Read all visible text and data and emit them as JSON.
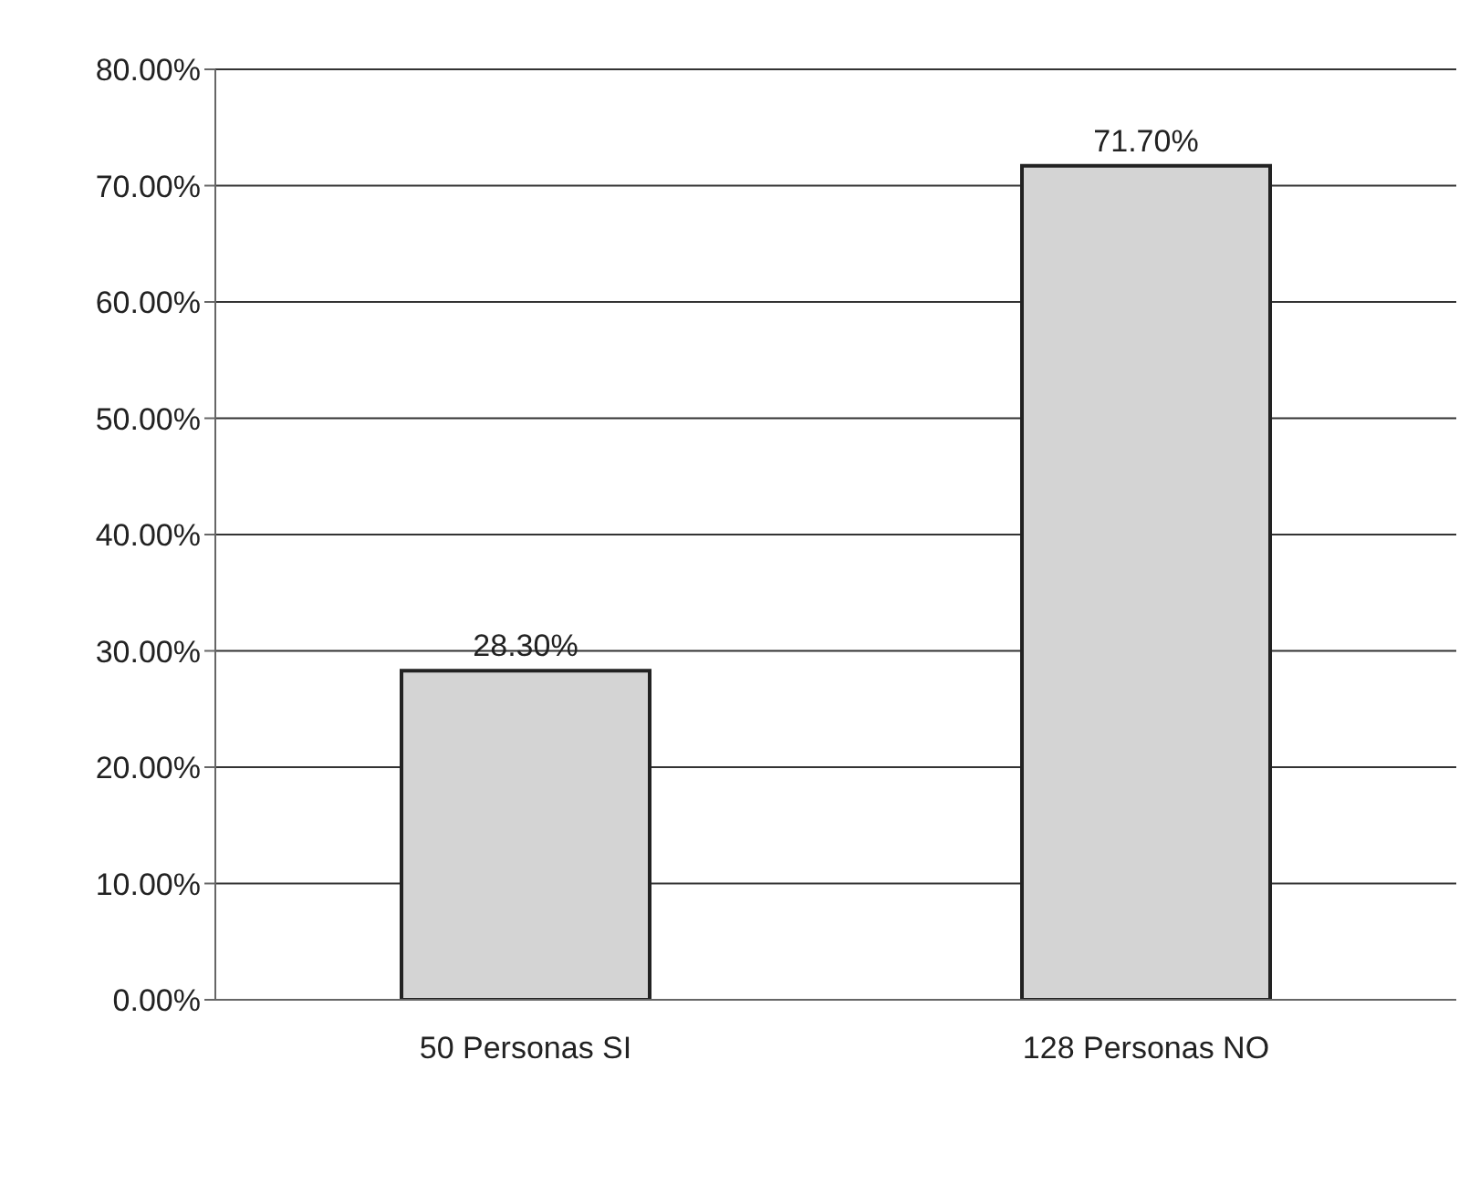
{
  "chart_data": {
    "type": "bar",
    "categories": [
      "50 Personas SI",
      "128 Personas NO"
    ],
    "values": [
      28.3,
      71.7
    ],
    "color": "#d4d4d4",
    "value_labels": [
      "28.30%",
      "71.70%"
    ],
    "ylim": [
      0,
      80
    ],
    "yticks": [
      {
        "value": 0,
        "label": "0.00%"
      },
      {
        "value": 10,
        "label": "10.00%"
      },
      {
        "value": 20,
        "label": "20.00%"
      },
      {
        "value": 30,
        "label": "30.00%"
      },
      {
        "value": 40,
        "label": "40.00%"
      },
      {
        "value": 50,
        "label": "50.00%"
      },
      {
        "value": 60,
        "label": "60.00%"
      },
      {
        "value": 70,
        "label": "70.00%"
      },
      {
        "value": 80,
        "label": "80.00%"
      }
    ],
    "grid": "y",
    "legend": false
  }
}
